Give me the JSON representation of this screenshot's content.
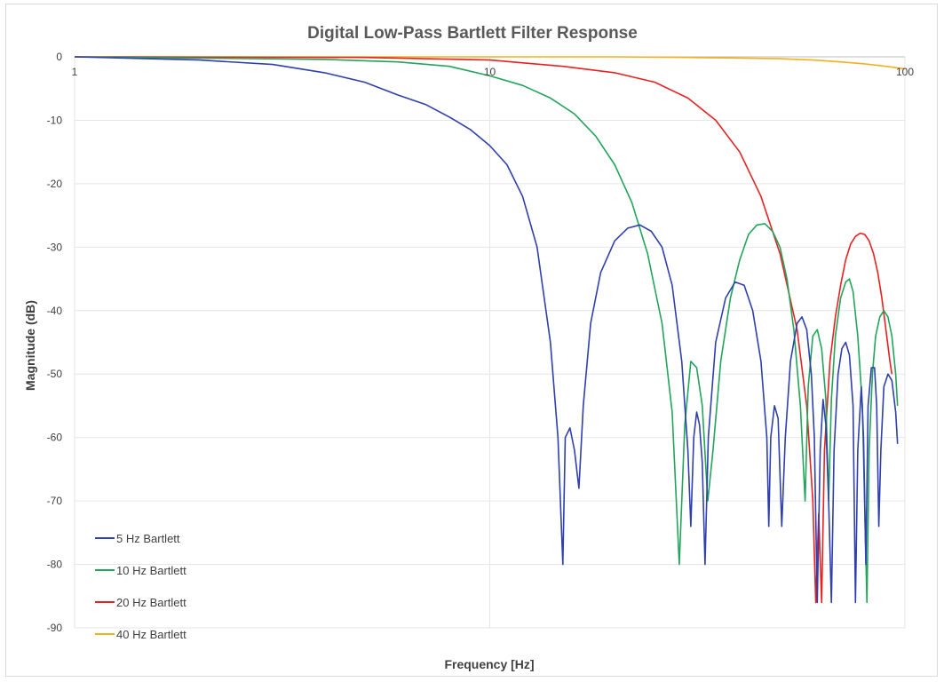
{
  "chart_data": {
    "type": "line",
    "title": "Digital Low-Pass Bartlett Filter Response",
    "xlabel": "Frequency [Hz]",
    "ylabel": "Magnitude (dB)",
    "xscale": "log",
    "xlim": [
      1,
      100
    ],
    "ylim": [
      -90,
      0
    ],
    "x_ticks": [
      "1",
      "10",
      "100"
    ],
    "y_ticks": [
      "0",
      "-10",
      "-20",
      "-30",
      "-40",
      "-50",
      "-60",
      "-70",
      "-80",
      "-90"
    ],
    "grid": true,
    "legend_position": "bottom-left",
    "series": [
      {
        "name": "5 Hz Bartlett",
        "color": "#2f3fae",
        "points": [
          [
            1,
            0
          ],
          [
            2,
            -0.5
          ],
          [
            3,
            -1.2
          ],
          [
            4,
            -2.5
          ],
          [
            5,
            -4
          ],
          [
            6,
            -6
          ],
          [
            7,
            -7.5
          ],
          [
            8,
            -9.5
          ],
          [
            9,
            -11.5
          ],
          [
            10,
            -14
          ],
          [
            11,
            -17
          ],
          [
            12,
            -22
          ],
          [
            13,
            -30
          ],
          [
            14,
            -45
          ],
          [
            14.6,
            -60
          ],
          [
            15,
            -80
          ],
          [
            15.2,
            -60
          ],
          [
            15.6,
            -58.5
          ],
          [
            16,
            -62
          ],
          [
            16.4,
            -68
          ],
          [
            16.8,
            -55
          ],
          [
            17.5,
            -42
          ],
          [
            18.5,
            -34
          ],
          [
            20,
            -29
          ],
          [
            21.5,
            -27
          ],
          [
            23,
            -26.5
          ],
          [
            24.5,
            -27.5
          ],
          [
            26,
            -30
          ],
          [
            27.5,
            -36
          ],
          [
            29,
            -48
          ],
          [
            30,
            -62
          ],
          [
            30.5,
            -74
          ],
          [
            31,
            -60
          ],
          [
            31.5,
            -56
          ],
          [
            32,
            -58
          ],
          [
            32.5,
            -64
          ],
          [
            33,
            -80
          ],
          [
            33.6,
            -60
          ],
          [
            35,
            -45
          ],
          [
            37,
            -38
          ],
          [
            39,
            -35.5
          ],
          [
            41,
            -36
          ],
          [
            43,
            -40
          ],
          [
            45,
            -48
          ],
          [
            46.5,
            -60
          ],
          [
            47,
            -74
          ],
          [
            47.5,
            -60
          ],
          [
            48.5,
            -55
          ],
          [
            49.5,
            -57
          ],
          [
            50.5,
            -74
          ],
          [
            51.5,
            -60
          ],
          [
            53,
            -48
          ],
          [
            55,
            -42
          ],
          [
            56.5,
            -41
          ],
          [
            58,
            -43
          ],
          [
            59.5,
            -50
          ],
          [
            60.5,
            -60
          ],
          [
            61.5,
            -86
          ],
          [
            62.5,
            -62
          ],
          [
            63.5,
            -54
          ],
          [
            64.5,
            -58
          ],
          [
            65.5,
            -70
          ],
          [
            66.5,
            -86
          ],
          [
            67.5,
            -62
          ],
          [
            69,
            -50
          ],
          [
            70.5,
            -46
          ],
          [
            72,
            -45
          ],
          [
            73.5,
            -47
          ],
          [
            75,
            -55
          ],
          [
            76,
            -86
          ],
          [
            77,
            -62
          ],
          [
            78.5,
            -52
          ],
          [
            79.5,
            -60
          ],
          [
            80.5,
            -80
          ],
          [
            81.5,
            -55
          ],
          [
            83,
            -49
          ],
          [
            84.5,
            -49
          ],
          [
            85.5,
            -55
          ],
          [
            86.5,
            -74
          ],
          [
            87.5,
            -62
          ],
          [
            89,
            -52
          ],
          [
            91,
            -50
          ],
          [
            93,
            -51
          ],
          [
            95,
            -56
          ],
          [
            96,
            -61
          ]
        ]
      },
      {
        "name": "10 Hz Bartlett",
        "color": "#21a55a",
        "points": [
          [
            1,
            0
          ],
          [
            4,
            -0.4
          ],
          [
            6,
            -0.8
          ],
          [
            8,
            -1.5
          ],
          [
            10,
            -3
          ],
          [
            12,
            -4.5
          ],
          [
            14,
            -6.5
          ],
          [
            16,
            -9
          ],
          [
            18,
            -12.5
          ],
          [
            20,
            -17
          ],
          [
            22,
            -23
          ],
          [
            24,
            -31
          ],
          [
            26,
            -42
          ],
          [
            27.5,
            -56
          ],
          [
            28.6,
            -80
          ],
          [
            29.5,
            -58
          ],
          [
            30.5,
            -48
          ],
          [
            31.5,
            -49
          ],
          [
            32.5,
            -55
          ],
          [
            33.5,
            -70
          ],
          [
            34.5,
            -62
          ],
          [
            36,
            -48
          ],
          [
            38,
            -38
          ],
          [
            40,
            -32
          ],
          [
            42,
            -28
          ],
          [
            44,
            -26.5
          ],
          [
            46,
            -26.3
          ],
          [
            48,
            -27.5
          ],
          [
            50,
            -30
          ],
          [
            52,
            -35
          ],
          [
            54,
            -43
          ],
          [
            56,
            -55
          ],
          [
            57.5,
            -70
          ],
          [
            58.5,
            -52
          ],
          [
            60,
            -44
          ],
          [
            61.5,
            -43
          ],
          [
            63,
            -46
          ],
          [
            64.5,
            -54
          ],
          [
            65.5,
            -70
          ],
          [
            66.5,
            -54
          ],
          [
            68,
            -44
          ],
          [
            70,
            -38
          ],
          [
            72,
            -35.5
          ],
          [
            73.5,
            -35
          ],
          [
            75,
            -37
          ],
          [
            77,
            -44
          ],
          [
            79,
            -55
          ],
          [
            81,
            -86
          ],
          [
            82,
            -62
          ],
          [
            83.5,
            -50
          ],
          [
            85,
            -44
          ],
          [
            87,
            -41
          ],
          [
            89,
            -40
          ],
          [
            91,
            -41
          ],
          [
            93,
            -44
          ],
          [
            95,
            -50
          ],
          [
            96,
            -55
          ]
        ]
      },
      {
        "name": "20 Hz Bartlett",
        "color": "#e82020",
        "points": [
          [
            1,
            0
          ],
          [
            5,
            -0.1
          ],
          [
            10,
            -0.5
          ],
          [
            15,
            -1.5
          ],
          [
            20,
            -2.5
          ],
          [
            25,
            -4
          ],
          [
            30,
            -6.5
          ],
          [
            35,
            -10
          ],
          [
            40,
            -15
          ],
          [
            45,
            -22
          ],
          [
            50,
            -31
          ],
          [
            55,
            -43
          ],
          [
            58,
            -55
          ],
          [
            60,
            -70
          ],
          [
            61,
            -86
          ],
          [
            62,
            -72
          ],
          [
            63,
            -86
          ],
          [
            64,
            -62
          ],
          [
            66,
            -48
          ],
          [
            68,
            -41
          ],
          [
            70,
            -36
          ],
          [
            72,
            -32
          ],
          [
            74,
            -29.5
          ],
          [
            76,
            -28.3
          ],
          [
            78,
            -27.8
          ],
          [
            80,
            -28
          ],
          [
            82,
            -29
          ],
          [
            84,
            -31
          ],
          [
            86,
            -34
          ],
          [
            88,
            -38
          ],
          [
            90,
            -43
          ],
          [
            92,
            -48
          ],
          [
            93,
            -50
          ]
        ]
      },
      {
        "name": "40 Hz Bartlett",
        "color": "#f2b01e",
        "points": [
          [
            1,
            0
          ],
          [
            10,
            0
          ],
          [
            20,
            0
          ],
          [
            30,
            -0.1
          ],
          [
            40,
            -0.2
          ],
          [
            50,
            -0.3
          ],
          [
            60,
            -0.5
          ],
          [
            70,
            -0.8
          ],
          [
            80,
            -1.1
          ],
          [
            90,
            -1.5
          ],
          [
            100,
            -1.9
          ]
        ]
      }
    ]
  }
}
